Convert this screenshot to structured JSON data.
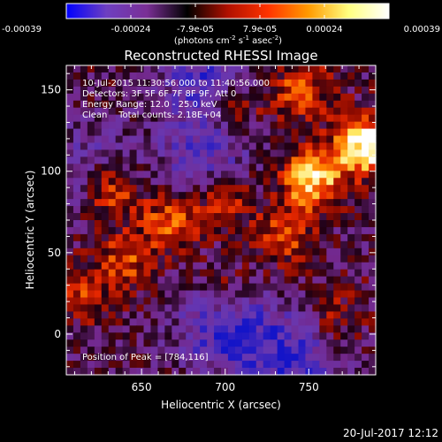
{
  "chart_data": {
    "type": "heatmap",
    "title": "Reconstructed RHESSI Image",
    "xlabel": "Heliocentric X (arcsec)",
    "ylabel": "Heliocentric Y (arcsec)",
    "x_ticks": [
      650,
      700,
      750
    ],
    "y_ticks": [
      0,
      50,
      100,
      150
    ],
    "xlim": [
      605,
      790
    ],
    "ylim": [
      -25,
      165
    ],
    "colorbar": {
      "ticks": [
        "-0.00039",
        "-0.00024",
        "-7.9e-05",
        "7.9e-05",
        "0.00024",
        "0.00039"
      ],
      "range": [
        -0.00039,
        0.00039
      ],
      "units_prefix": "(photons cm",
      "units_exp1": "-2",
      "units_mid": " s",
      "units_exp2": "-1",
      "units_mid2": " asec",
      "units_exp3": "-2",
      "units_suffix": ")",
      "colors": [
        "#0000ff",
        "#6e3fc0",
        "#7a2f95",
        "#000000",
        "#b01000",
        "#ff3300",
        "#ff9a00",
        "#ffff80",
        "#ffffff"
      ]
    },
    "annotations": [
      "10-Jul-2015 11:30:56.000 to 11:40:56.000",
      "Detectors: 3F 5F 6F 7F 8F 9F, Att 0",
      "Energy Range: 12.0 - 25.0 keV",
      "Clean    Total counts: 2.18E+04"
    ],
    "peak_label": "Position of Peak = [784,116]",
    "peak": [
      784,
      116
    ],
    "bright_sources": [
      {
        "x": 784,
        "y": 116,
        "strength": 1.0
      },
      {
        "x": 752,
        "y": 95,
        "strength": 0.85
      },
      {
        "x": 632,
        "y": 88,
        "strength": 0.6
      },
      {
        "x": 668,
        "y": 70,
        "strength": 0.55
      },
      {
        "x": 700,
        "y": 85,
        "strength": 0.5
      },
      {
        "x": 640,
        "y": 45,
        "strength": 0.45
      },
      {
        "x": 735,
        "y": 60,
        "strength": 0.45
      },
      {
        "x": 705,
        "y": 140,
        "strength": 0.45
      },
      {
        "x": 745,
        "y": 150,
        "strength": 0.5
      },
      {
        "x": 615,
        "y": 25,
        "strength": 0.35
      },
      {
        "x": 700,
        "y": 25,
        "strength": 0.35
      },
      {
        "x": 765,
        "y": 10,
        "strength": 0.3
      }
    ],
    "dark_sources": [
      {
        "x": 700,
        "y": 5,
        "strength": 0.8
      },
      {
        "x": 690,
        "y": 155,
        "strength": 0.7
      },
      {
        "x": 690,
        "y": 105,
        "strength": 0.6
      },
      {
        "x": 620,
        "y": 100,
        "strength": 0.45
      },
      {
        "x": 740,
        "y": -15,
        "strength": 0.7
      }
    ]
  },
  "footer": {
    "timestamp": "20-Jul-2017 12:12"
  }
}
